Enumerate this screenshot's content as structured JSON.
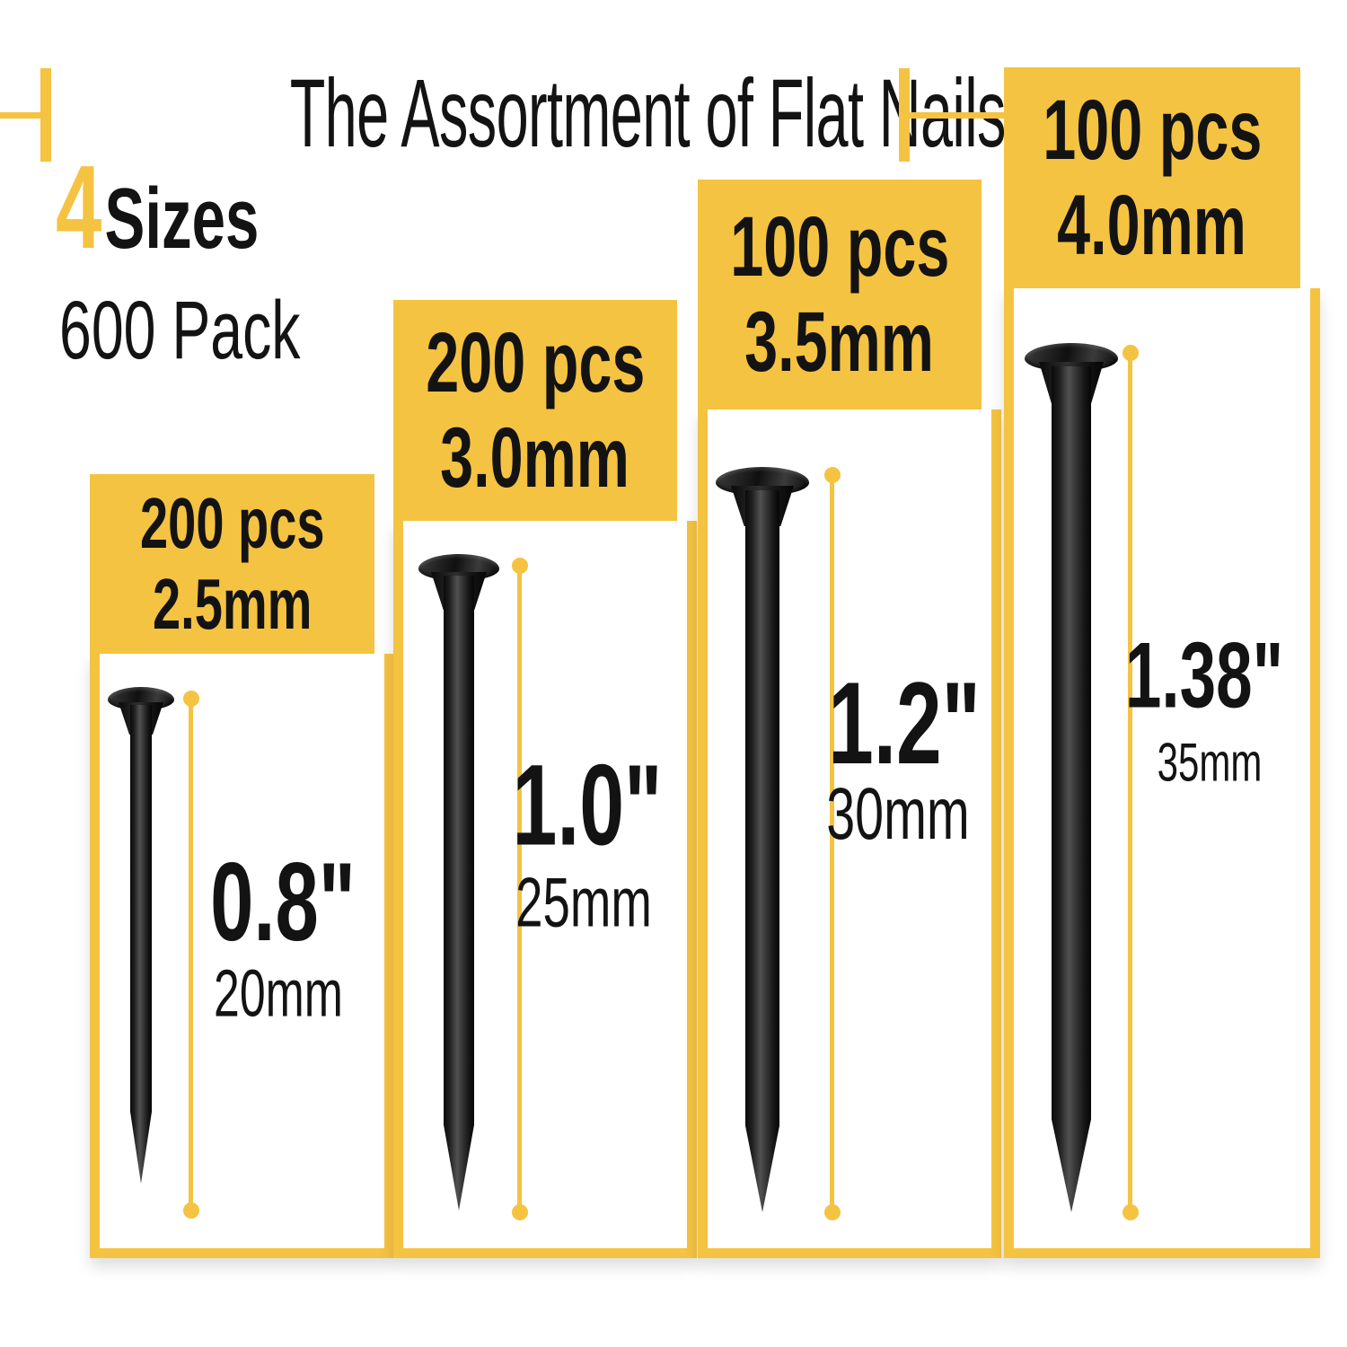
{
  "header": {
    "title": "The Assortment of Flat Nails",
    "sizes_count": "4",
    "sizes_word": "Sizes",
    "pack_label": "600 Pack"
  },
  "colors": {
    "accent": "#F5C342",
    "ink": "#131313"
  },
  "columns": [
    {
      "pcs": "200 pcs",
      "diameter": "2.5mm",
      "length_in": "0.8\"",
      "length_mm": "20mm"
    },
    {
      "pcs": "200 pcs",
      "diameter": "3.0mm",
      "length_in": "1.0\"",
      "length_mm": "25mm"
    },
    {
      "pcs": "100 pcs",
      "diameter": "3.5mm",
      "length_in": "1.2\"",
      "length_mm": "30mm"
    },
    {
      "pcs": "100 pcs",
      "diameter": "4.0mm",
      "length_in": "1.38\"",
      "length_mm": "35mm"
    }
  ]
}
